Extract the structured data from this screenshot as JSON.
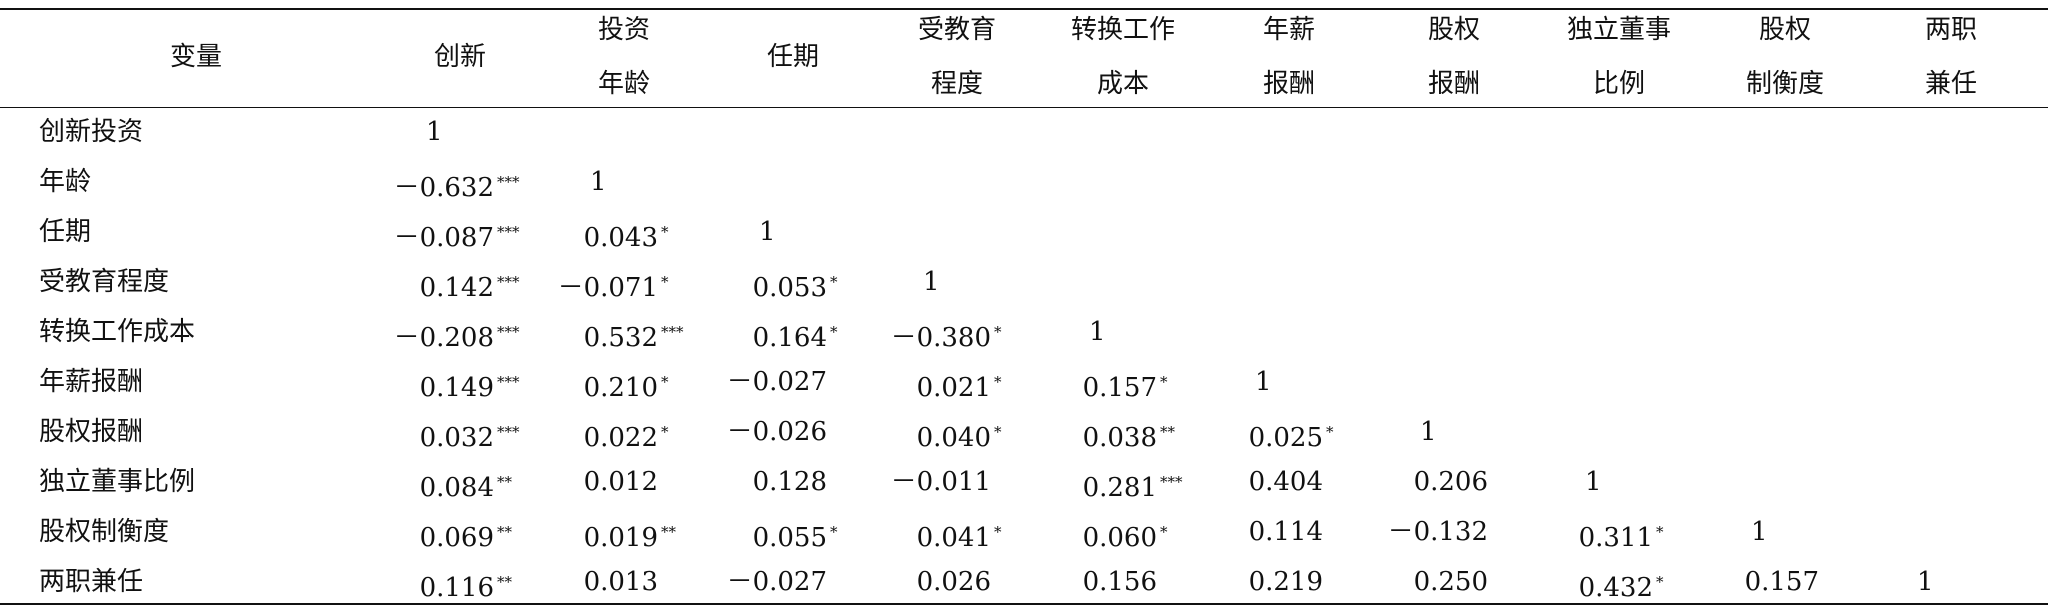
{
  "table": {
    "header": [
      [
        "变量"
      ],
      [
        "创新"
      ],
      [
        "投资",
        "年龄"
      ],
      [
        "任期"
      ],
      [
        "受教育",
        "程度"
      ],
      [
        "转换工作",
        "成本"
      ],
      [
        "年薪",
        "报酬"
      ],
      [
        "股权",
        "报酬"
      ],
      [
        "独立董事",
        "比例"
      ],
      [
        "股权",
        "制衡度"
      ],
      [
        "两职",
        "兼任"
      ]
    ],
    "rows": [
      {
        "label": "创新投资",
        "cells": [
          {
            "v": "1"
          }
        ]
      },
      {
        "label": "年龄",
        "cells": [
          {
            "v": "－0.632",
            "s": "***"
          },
          {
            "v": "1"
          }
        ]
      },
      {
        "label": "任期",
        "cells": [
          {
            "v": "－0.087",
            "s": "***"
          },
          {
            "v": "0.043",
            "s": "*"
          },
          {
            "v": "1"
          }
        ]
      },
      {
        "label": "受教育程度",
        "cells": [
          {
            "v": "0.142",
            "s": "***"
          },
          {
            "v": "－0.071",
            "s": "*"
          },
          {
            "v": "0.053",
            "s": "*"
          },
          {
            "v": "1"
          }
        ]
      },
      {
        "label": "转换工作成本",
        "cells": [
          {
            "v": "－0.208",
            "s": "***"
          },
          {
            "v": "0.532",
            "s": "***"
          },
          {
            "v": "0.164",
            "s": "*"
          },
          {
            "v": "－0.380",
            "s": "*"
          },
          {
            "v": "1"
          }
        ]
      },
      {
        "label": "年薪报酬",
        "cells": [
          {
            "v": "0.149",
            "s": "***"
          },
          {
            "v": "0.210",
            "s": "*"
          },
          {
            "v": "－0.027"
          },
          {
            "v": "0.021",
            "s": "*"
          },
          {
            "v": "0.157",
            "s": "*"
          },
          {
            "v": "1"
          }
        ]
      },
      {
        "label": "股权报酬",
        "cells": [
          {
            "v": "0.032",
            "s": "***"
          },
          {
            "v": "0.022",
            "s": "*"
          },
          {
            "v": "－0.026"
          },
          {
            "v": "0.040",
            "s": "*"
          },
          {
            "v": "0.038",
            "s": "**"
          },
          {
            "v": "0.025",
            "s": "*"
          },
          {
            "v": "1"
          }
        ]
      },
      {
        "label": "独立董事比例",
        "cells": [
          {
            "v": "0.084",
            "s": "**"
          },
          {
            "v": "0.012"
          },
          {
            "v": "0.128"
          },
          {
            "v": "－0.011"
          },
          {
            "v": "0.281",
            "s": "***"
          },
          {
            "v": "0.404"
          },
          {
            "v": "0.206"
          },
          {
            "v": "1"
          }
        ]
      },
      {
        "label": "股权制衡度",
        "cells": [
          {
            "v": "0.069",
            "s": "**"
          },
          {
            "v": "0.019",
            "s": "**"
          },
          {
            "v": "0.055",
            "s": "*"
          },
          {
            "v": "0.041",
            "s": "*"
          },
          {
            "v": "0.060",
            "s": "*"
          },
          {
            "v": "0.114"
          },
          {
            "v": "－0.132"
          },
          {
            "v": "0.311",
            "s": "*"
          },
          {
            "v": "1"
          }
        ]
      },
      {
        "label": "两职兼任",
        "cells": [
          {
            "v": "0.116",
            "s": "**"
          },
          {
            "v": "0.013"
          },
          {
            "v": "－0.027"
          },
          {
            "v": "0.026"
          },
          {
            "v": "0.156"
          },
          {
            "v": "0.219"
          },
          {
            "v": "0.250"
          },
          {
            "v": "0.432",
            "s": "*"
          },
          {
            "v": "0.157"
          },
          {
            "v": "1"
          }
        ]
      }
    ]
  }
}
